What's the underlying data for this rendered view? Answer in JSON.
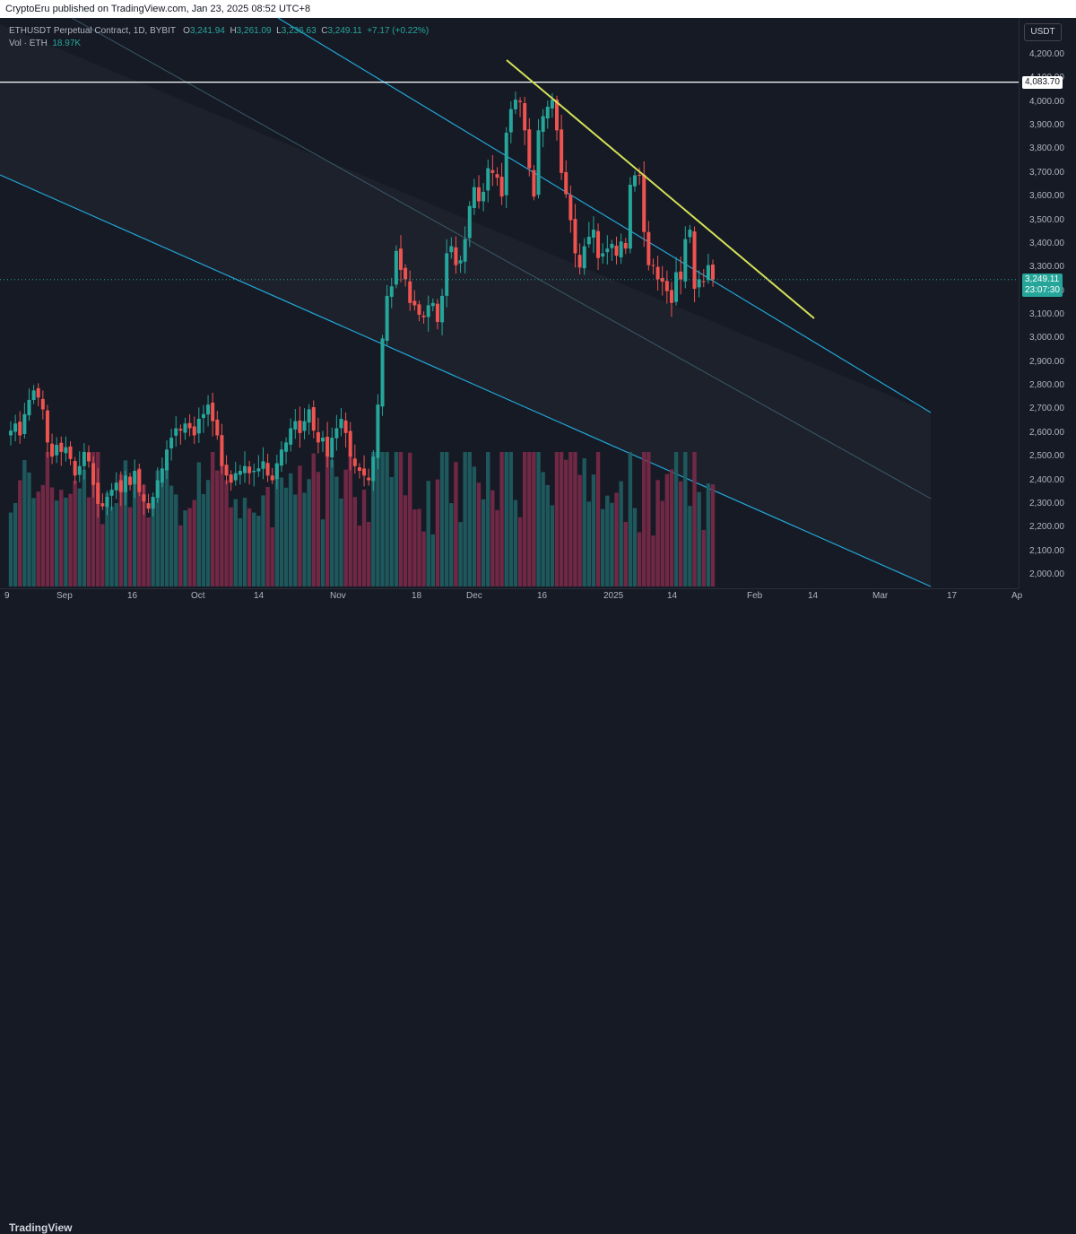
{
  "header": {
    "publisher_line": "CryptoEru published on TradingView.com, Jan 23, 2025 08:52 UTC+8"
  },
  "legend": {
    "symbol": "ETHUSDT Perpetual Contract, 1D, BYBIT",
    "o_label": "O",
    "o_value": "3,241.94",
    "h_label": "H",
    "h_value": "3,261.09",
    "l_label": "L",
    "l_value": "3,236.63",
    "c_label": "C",
    "c_value": "3,249.11",
    "change": "+7.17 (+0.22%)",
    "vol_label": "Vol · ETH",
    "vol_value": "18.97K"
  },
  "price_axis": {
    "unit": "USDT",
    "ticks": [
      "4,200.00",
      "4,100.00",
      "4,000.00",
      "3,900.00",
      "3,800.00",
      "3,700.00",
      "3,600.00",
      "3,500.00",
      "3,400.00",
      "3,300.00",
      "3,200.00",
      "3,100.00",
      "3,000.00",
      "2,900.00",
      "2,800.00",
      "2,700.00",
      "2,600.00",
      "2,500.00",
      "2,400.00",
      "2,300.00",
      "2,200.00",
      "2,100.00",
      "2,000.00"
    ],
    "level_label": "4,083.70",
    "last_price_label": "3,249.11",
    "countdown_label": "23:07:30"
  },
  "time_axis": {
    "labels": [
      "9",
      "Sep",
      "16",
      "Oct",
      "14",
      "Nov",
      "18",
      "Dec",
      "16",
      "2025",
      "14",
      "Feb",
      "14",
      "Mar",
      "17",
      "Ap"
    ]
  },
  "footer": {
    "brand": "TradingView"
  },
  "colors": {
    "up": "#26a69a",
    "down": "#ef5350",
    "channel": "#22a7d8",
    "trendline": "#d4e157",
    "level": "#ffffff"
  },
  "chart_data": {
    "type": "candlestick",
    "title": "ETHUSDT Perpetual Contract, 1D, BYBIT",
    "ylim": [
      1950,
      4270
    ],
    "horizontal_level": 4083.7,
    "last_price": 3249.11,
    "ohlc_note": "approximate daily closes read from chart, Aug 2024 – Jan 23 2025",
    "closes": [
      2610,
      2640,
      2590,
      2680,
      2740,
      2780,
      2750,
      2700,
      2560,
      2500,
      2550,
      2520,
      2540,
      2490,
      2420,
      2460,
      2520,
      2480,
      2380,
      2300,
      2290,
      2330,
      2360,
      2390,
      2350,
      2420,
      2380,
      2440,
      2350,
      2310,
      2280,
      2330,
      2400,
      2450,
      2530,
      2580,
      2620,
      2610,
      2640,
      2620,
      2590,
      2660,
      2680,
      2720,
      2650,
      2590,
      2460,
      2420,
      2390,
      2430,
      2440,
      2460,
      2430,
      2440,
      2450,
      2480,
      2420,
      2400,
      2470,
      2530,
      2560,
      2620,
      2650,
      2600,
      2650,
      2700,
      2610,
      2560,
      2580,
      2500,
      2580,
      2620,
      2660,
      2600,
      2500,
      2460,
      2440,
      2420,
      2400,
      2500,
      2720,
      3000,
      3180,
      3220,
      3370,
      3290,
      3250,
      3150,
      3140,
      3100,
      3090,
      3140,
      3150,
      3070,
      3180,
      3360,
      3390,
      3310,
      3330,
      3420,
      3560,
      3640,
      3580,
      3620,
      3720,
      3700,
      3680,
      3600,
      3870,
      3970,
      4010,
      4000,
      3880,
      3720,
      3600,
      3880,
      3940,
      3980,
      4010,
      3880,
      3700,
      3610,
      3500,
      3360,
      3300,
      3390,
      3430,
      3460,
      3340,
      3360,
      3380,
      3400,
      3350,
      3410,
      3380,
      3650,
      3690,
      3690,
      3450,
      3310,
      3310,
      3250,
      3240,
      3200,
      3150,
      3280,
      3250,
      3420,
      3460,
      3210,
      3250,
      3240,
      3310,
      3249
    ]
  }
}
